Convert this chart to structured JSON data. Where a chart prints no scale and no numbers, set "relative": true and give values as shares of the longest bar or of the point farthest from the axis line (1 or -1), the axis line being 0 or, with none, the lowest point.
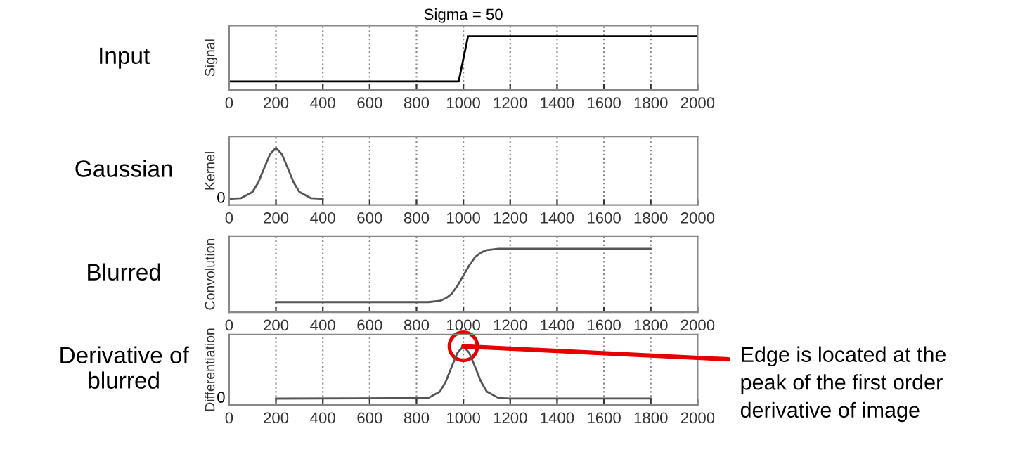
{
  "chart_data": [
    {
      "type": "line",
      "title": "Sigma = 50",
      "subtitle": "Input",
      "ylabel": "Signal",
      "relative": true,
      "grid": "x",
      "xlim": [
        0,
        2000
      ],
      "xticks": [
        0,
        200,
        400,
        600,
        800,
        1000,
        1200,
        1400,
        1600,
        1800,
        2000
      ],
      "series": [
        {
          "color": "#000000",
          "x": [
            0,
            200,
            400,
            600,
            800,
            980,
            1020,
            1200,
            1400,
            1600,
            1800,
            2000
          ],
          "values": [
            0.16,
            0.16,
            0.16,
            0.16,
            0.16,
            0.16,
            1,
            1,
            1,
            1,
            1,
            1
          ]
        }
      ]
    },
    {
      "type": "line",
      "subtitle": "Gaussian",
      "ylabel": "Kernel",
      "relative": true,
      "grid": "x",
      "annotations": [
        "0"
      ],
      "xlim": [
        0,
        2000
      ],
      "xticks": [
        0,
        200,
        400,
        600,
        800,
        1000,
        1200,
        1400,
        1600,
        1800,
        2000
      ],
      "series": [
        {
          "color": "#555555",
          "x": [
            0,
            50,
            100,
            125,
            150,
            175,
            200,
            225,
            250,
            275,
            300,
            350,
            400
          ],
          "values": [
            0.11,
            0.12,
            0.23,
            0.4,
            0.65,
            0.89,
            1,
            0.89,
            0.65,
            0.4,
            0.23,
            0.12,
            0.11
          ]
        }
      ]
    },
    {
      "type": "line",
      "subtitle": "Blurred",
      "ylabel": "Convolution",
      "relative": true,
      "grid": "x",
      "xlim": [
        0,
        2000
      ],
      "xticks": [
        0,
        200,
        400,
        600,
        800,
        1000,
        1200,
        1400,
        1600,
        1800,
        2000
      ],
      "series": [
        {
          "color": "#555555",
          "x": [
            200,
            850,
            900,
            925,
            950,
            975,
            1000,
            1025,
            1050,
            1075,
            1100,
            1150,
            1800
          ],
          "values": [
            0.16,
            0.16,
            0.18,
            0.22,
            0.29,
            0.42,
            0.58,
            0.74,
            0.87,
            0.94,
            0.98,
            1,
            1
          ]
        }
      ]
    },
    {
      "type": "line",
      "subtitle": "Derivative of\nblurred",
      "ylabel": "Differentiation",
      "relative": true,
      "grid": "x",
      "xlim": [
        0,
        2000
      ],
      "xticks": [
        0,
        200,
        400,
        600,
        800,
        1000,
        1200,
        1400,
        1600,
        1800,
        2000
      ],
      "annotations": [
        "0",
        {
          "text": "Edge is located at the\npeak of the first order\nderivative of image",
          "x": 1000,
          "y": 1
        }
      ],
      "series": [
        {
          "color": "#555555",
          "x": [
            200,
            850,
            900,
            925,
            950,
            975,
            1000,
            1025,
            1050,
            1075,
            1100,
            1150,
            1200,
            1800
          ],
          "values": [
            0.11,
            0.12,
            0.23,
            0.4,
            0.65,
            0.89,
            1,
            0.89,
            0.65,
            0.4,
            0.23,
            0.12,
            0.11,
            0.11
          ]
        }
      ]
    }
  ]
}
